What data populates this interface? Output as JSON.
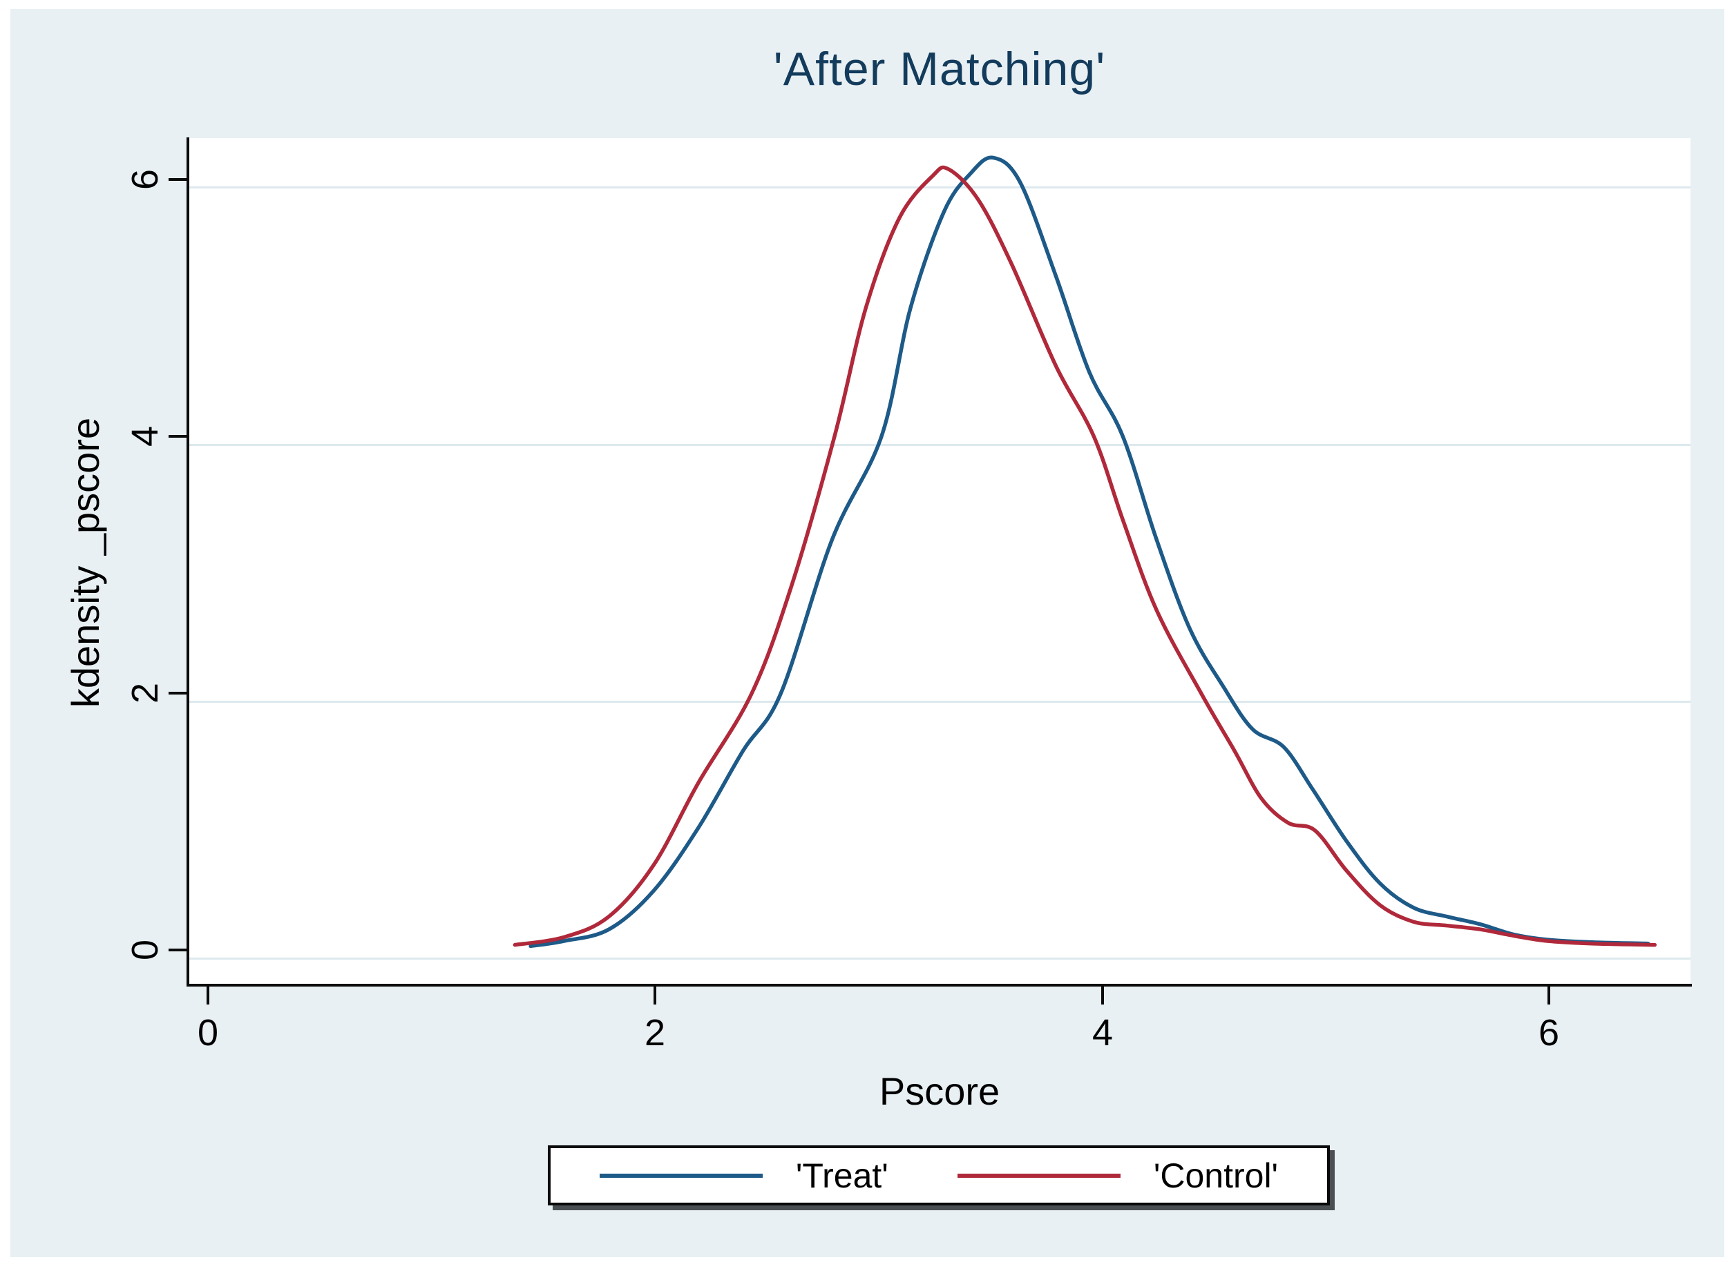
{
  "chart_data": {
    "type": "line",
    "title": "'After Matching'",
    "xlabel": "Pscore",
    "ylabel": "kdensity _pscore",
    "x_tick_labels": [
      "0",
      "2",
      "4",
      "6"
    ],
    "y_tick_labels": [
      "0",
      "2",
      "4",
      "6"
    ],
    "xlim": [
      0,
      6.6
    ],
    "ylim": [
      0,
      6.6
    ],
    "grid": "horizontal",
    "legend_position": "bottom",
    "series": [
      {
        "name": "'Treat'",
        "color": "#1d5a88",
        "points": [
          [
            1.45,
            0.03
          ],
          [
            1.6,
            0.07
          ],
          [
            1.8,
            0.16
          ],
          [
            2.0,
            0.46
          ],
          [
            2.2,
            0.95
          ],
          [
            2.4,
            1.55
          ],
          [
            2.57,
            2.0
          ],
          [
            2.8,
            3.2
          ],
          [
            3.02,
            4.0
          ],
          [
            3.15,
            5.0
          ],
          [
            3.3,
            5.75
          ],
          [
            3.42,
            6.05
          ],
          [
            3.52,
            6.17
          ],
          [
            3.64,
            5.98
          ],
          [
            3.8,
            5.25
          ],
          [
            3.95,
            4.5
          ],
          [
            4.1,
            4.0
          ],
          [
            4.25,
            3.2
          ],
          [
            4.4,
            2.5
          ],
          [
            4.55,
            2.05
          ],
          [
            4.68,
            1.72
          ],
          [
            4.82,
            1.58
          ],
          [
            4.95,
            1.25
          ],
          [
            5.1,
            0.85
          ],
          [
            5.25,
            0.52
          ],
          [
            5.4,
            0.33
          ],
          [
            5.55,
            0.26
          ],
          [
            5.7,
            0.2
          ],
          [
            5.85,
            0.12
          ],
          [
            6.0,
            0.08
          ],
          [
            6.2,
            0.06
          ],
          [
            6.45,
            0.05
          ]
        ]
      },
      {
        "name": "'Control'",
        "color": "#b0293a",
        "points": [
          [
            1.38,
            0.04
          ],
          [
            1.6,
            0.1
          ],
          [
            1.8,
            0.26
          ],
          [
            2.0,
            0.66
          ],
          [
            2.2,
            1.3
          ],
          [
            2.44,
            2.0
          ],
          [
            2.62,
            2.85
          ],
          [
            2.81,
            4.0
          ],
          [
            2.95,
            5.0
          ],
          [
            3.1,
            5.7
          ],
          [
            3.25,
            6.03
          ],
          [
            3.32,
            6.08
          ],
          [
            3.45,
            5.85
          ],
          [
            3.6,
            5.35
          ],
          [
            3.8,
            4.55
          ],
          [
            3.97,
            4.0
          ],
          [
            4.1,
            3.35
          ],
          [
            4.25,
            2.65
          ],
          [
            4.45,
            2.0
          ],
          [
            4.6,
            1.55
          ],
          [
            4.72,
            1.18
          ],
          [
            4.84,
            0.99
          ],
          [
            4.96,
            0.93
          ],
          [
            5.1,
            0.62
          ],
          [
            5.25,
            0.35
          ],
          [
            5.4,
            0.22
          ],
          [
            5.55,
            0.19
          ],
          [
            5.7,
            0.16
          ],
          [
            5.85,
            0.11
          ],
          [
            6.0,
            0.07
          ],
          [
            6.2,
            0.05
          ],
          [
            6.48,
            0.04
          ]
        ]
      }
    ]
  },
  "legend": {
    "items": [
      {
        "label": "'Treat'"
      },
      {
        "label": "'Control'"
      }
    ]
  },
  "colors": {
    "background": "#e8f0f3",
    "plot_background": "#ffffff",
    "grid": "#dde9ee",
    "axis": "#0b0b0b",
    "title": "#133b5c"
  }
}
